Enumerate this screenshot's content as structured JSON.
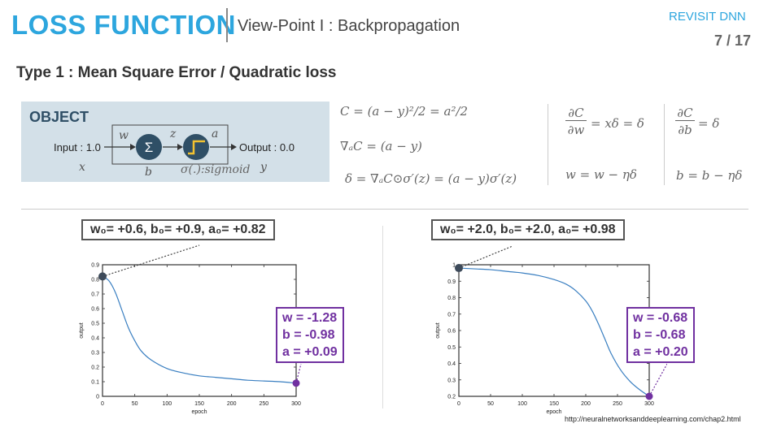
{
  "header": {
    "title": "LOSS FUNCTION",
    "subtitle": "View-Point I : Backpropagation",
    "revisit": "REVISIT DNN",
    "page": "7 / 17"
  },
  "section_title": "Type 1 : Mean Square Error / Quadratic loss",
  "object": {
    "label": "OBJECT",
    "input": "Input : 1.0",
    "output": "Output : 0.0",
    "w": "w",
    "z": "z",
    "a": "a",
    "x": "x",
    "b": "b",
    "y": "y",
    "sigmoid": "σ(.):sigmoid",
    "sum_symbol": "Σ"
  },
  "equations": {
    "cost": "C = (a − y)²/2 = a²/2",
    "grad_a": "∇ₐC = (a − y)",
    "delta": "δ = ∇ₐC⊙σ′(z) = (a − y)σ′(z)",
    "dc_dw_num": "∂C",
    "dc_dw_den": "∂w",
    "dc_dw_rhs": "= xδ = δ",
    "dc_db_num": "∂C",
    "dc_db_den": "∂b",
    "dc_db_rhs": "= δ",
    "w_update": "w = w − ηδ",
    "b_update": "b = b − ηδ"
  },
  "plots": {
    "left": {
      "init_label": "w₀= +0.6, b₀= +0.9, a₀= +0.82",
      "final_w": "w = -1.28",
      "final_b": "b = -0.98",
      "final_a": "a = +0.09"
    },
    "right": {
      "init_label": "w₀= +2.0, b₀= +2.0, a₀= +0.98",
      "final_w": "w = -0.68",
      "final_b": "b = -0.68",
      "final_a": "a = +0.20"
    }
  },
  "chart_data": [
    {
      "type": "line",
      "xlabel": "epoch",
      "ylabel": "output",
      "xlim": [
        0,
        300
      ],
      "ylim": [
        0,
        0.9
      ],
      "xticks": [
        0,
        50,
        100,
        150,
        200,
        250,
        300
      ],
      "yticks": [
        0,
        0.1,
        0.2,
        0.3,
        0.4,
        0.5,
        0.6,
        0.7,
        0.8,
        0.9
      ],
      "x": [
        0,
        10,
        20,
        30,
        40,
        50,
        60,
        75,
        100,
        125,
        150,
        175,
        200,
        225,
        250,
        275,
        300
      ],
      "y": [
        0.82,
        0.79,
        0.71,
        0.59,
        0.47,
        0.38,
        0.31,
        0.25,
        0.19,
        0.16,
        0.14,
        0.13,
        0.12,
        0.11,
        0.105,
        0.1,
        0.09
      ],
      "color": "#3a7fc1",
      "marker_color_start": "#3d4a5a",
      "marker_color_end": "#7030a0"
    },
    {
      "type": "line",
      "xlabel": "epoch",
      "ylabel": "output",
      "xlim": [
        0,
        300
      ],
      "ylim": [
        0.2,
        1
      ],
      "xticks": [
        0,
        50,
        100,
        150,
        200,
        250,
        300
      ],
      "yticks": [
        0.2,
        0.3,
        0.4,
        0.5,
        0.6,
        0.7,
        0.8,
        0.9,
        1
      ],
      "x": [
        0,
        25,
        50,
        75,
        100,
        125,
        150,
        170,
        185,
        200,
        210,
        220,
        230,
        240,
        255,
        270,
        285,
        300
      ],
      "y": [
        0.98,
        0.975,
        0.97,
        0.96,
        0.95,
        0.935,
        0.91,
        0.88,
        0.84,
        0.78,
        0.72,
        0.64,
        0.55,
        0.46,
        0.36,
        0.29,
        0.24,
        0.2
      ],
      "color": "#3a7fc1",
      "marker_color_start": "#3d4a5a",
      "marker_color_end": "#7030a0"
    }
  ],
  "url": "http://neuralnetworksanddeeplearning.com/chap2.html",
  "colors": {
    "accent": "#2da6de",
    "purple": "#7030a0",
    "object_bg": "#d3e0e8",
    "node": "#2f4f66",
    "step": "#f2c230"
  }
}
